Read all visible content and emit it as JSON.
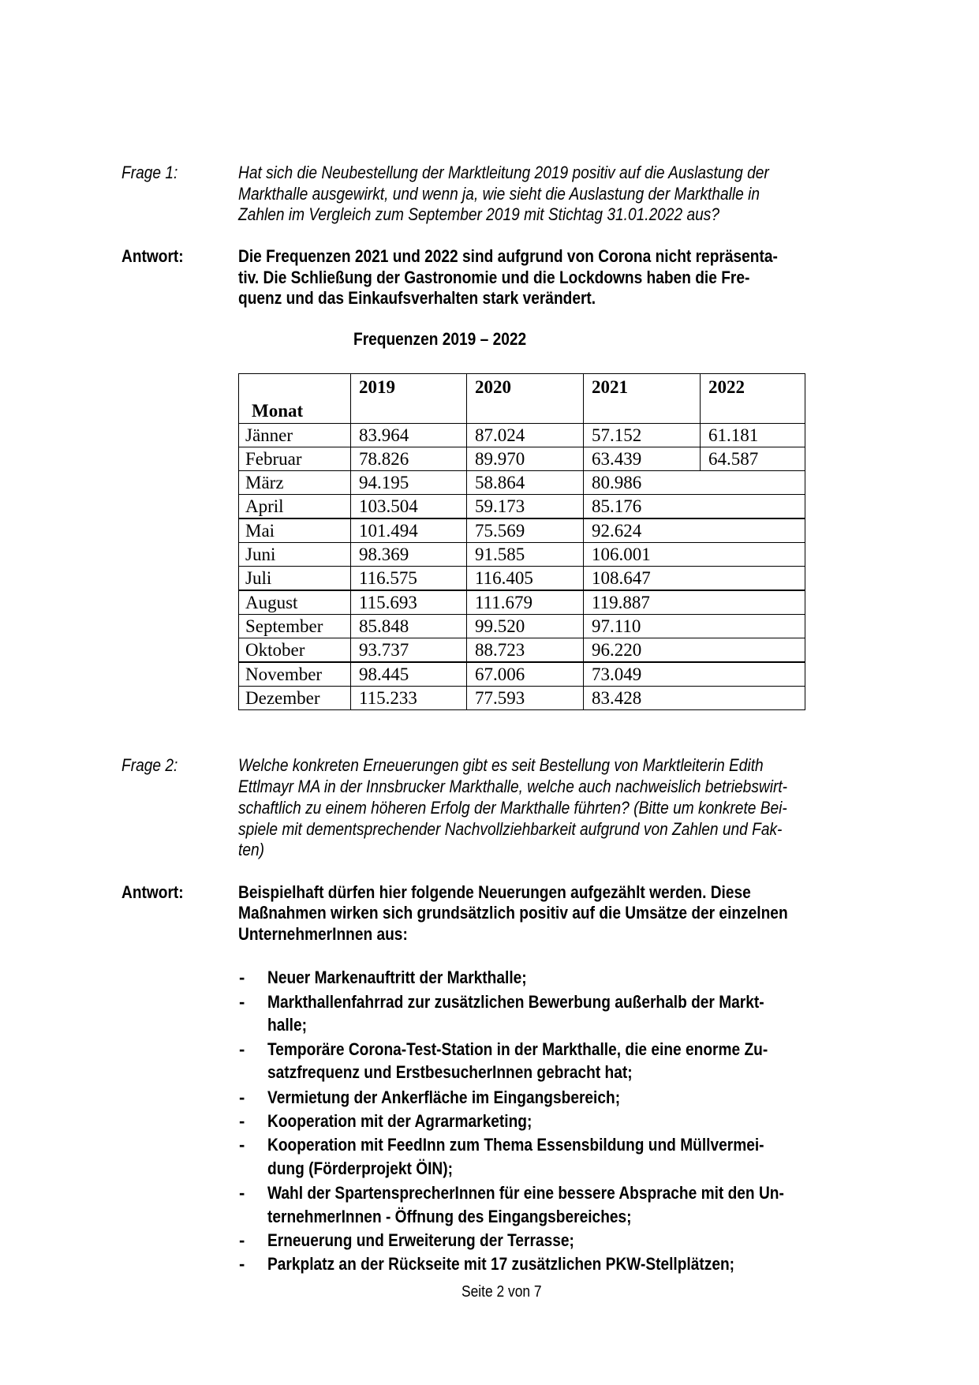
{
  "frage1": {
    "label": "Frage 1:",
    "lines": [
      "Hat sich die Neubestellung der Marktleitung 2019 positiv auf die Auslastung der",
      "Markthalle ausgewirkt, und wenn ja, wie sieht die Auslastung der Markthalle in",
      "Zahlen im Vergleich zum September 2019 mit Stichtag 31.01.2022 aus?"
    ]
  },
  "antwort1": {
    "label": "Antwort:",
    "lines": [
      "Die Frequenzen 2021 und 2022 sind aufgrund von Corona nicht repräsenta-",
      "tiv. Die Schließung der Gastronomie und die Lockdowns haben die Fre-",
      "quenz und das Einkaufsverhalten stark verändert."
    ]
  },
  "table": {
    "title": "Frequenzen 2019 – 2022",
    "headers": [
      "Monat",
      "2019",
      "2020",
      "2021",
      "2022"
    ],
    "rows": [
      [
        "Jänner",
        "83.964",
        "87.024",
        "57.152",
        "61.181"
      ],
      [
        "Februar",
        "78.826",
        "89.970",
        "63.439",
        "64.587"
      ],
      [
        "März",
        "94.195",
        "58.864",
        "80.986"
      ],
      [
        "April",
        "103.504",
        "59.173",
        "85.176"
      ],
      [
        "Mai",
        "101.494",
        "75.569",
        "92.624"
      ],
      [
        "Juni",
        "98.369",
        "91.585",
        "106.001"
      ],
      [
        "Juli",
        "116.575",
        "116.405",
        "108.647"
      ],
      [
        "August",
        "115.693",
        "111.679",
        "119.887"
      ],
      [
        "September",
        "85.848",
        "99.520",
        "97.110"
      ],
      [
        "Oktober",
        "93.737",
        "88.723",
        "96.220"
      ],
      [
        "November",
        "98.445",
        "67.006",
        "73.049"
      ],
      [
        "Dezember",
        "115.233",
        "77.593",
        "83.428"
      ]
    ]
  },
  "frage2": {
    "label": "Frage 2:",
    "lines": [
      "Welche konkreten Erneuerungen gibt es seit Bestellung von Marktleiterin Edith",
      "Ettlmayr MA in der Innsbrucker Markthalle, welche auch nachweislich betriebswirt-",
      "schaftlich zu einem höheren Erfolg der Markthalle führten? (Bitte um konkrete Bei-",
      "spiele mit dementsprechender Nachvollziehbarkeit aufgrund von Zahlen und Fak-",
      "ten)"
    ]
  },
  "antwort2": {
    "label": "Antwort:",
    "lines": [
      "Beispielhaft dürfen hier folgende Neuerungen aufgezählt werden. Diese",
      "Maßnahmen wirken sich grundsätzlich positiv auf die Umsätze der einzelnen",
      "UnternehmerInnen aus:"
    ],
    "bullets": [
      [
        "Neuer Markenauftritt der Markthalle;"
      ],
      [
        "Markthallenfahrrad zur zusätzlichen Bewerbung außerhalb der Markt-",
        "halle;"
      ],
      [
        "Temporäre Corona-Test-Station in der Markthalle, die eine enorme Zu-",
        "satzfrequenz und ErstbesucherInnen gebracht hat;"
      ],
      [
        "Vermietung der Ankerfläche im Eingangsbereich;"
      ],
      [
        "Kooperation mit der Agrarmarketing;"
      ],
      [
        "Kooperation mit FeedInn zum Thema Essensbildung und Müllvermei-",
        "dung (Förderprojekt ÖIN);"
      ],
      [
        "Wahl der SpartensprecherInnen für eine bessere Absprache mit den Un-",
        "ternehmerInnen - Öffnung des Eingangsbereiches;"
      ],
      [
        "Erneuerung und Erweiterung der Terrasse;"
      ],
      [
        "Parkplatz an der Rückseite mit 17 zusätzlichen PKW-Stellplätzen;"
      ]
    ]
  },
  "footer": "Seite 2 von 7"
}
